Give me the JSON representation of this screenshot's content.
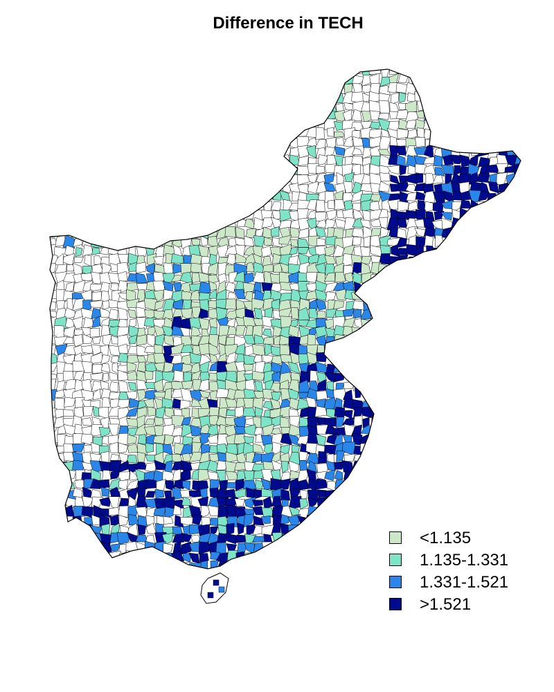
{
  "title": "Difference in TECH",
  "colors": {
    "no_data": "#ffffff",
    "class1": "#cce8c9",
    "class2": "#7fe3c8",
    "class3": "#2b86ea",
    "class4": "#000a8c",
    "border": "#000000"
  },
  "legend": [
    {
      "label": "<1.135",
      "color": "#cce8c9"
    },
    {
      "label": "1.135-1.331",
      "color": "#7fe3c8"
    },
    {
      "label": "1.331-1.521",
      "color": "#2b86ea"
    },
    {
      "label": ">1.521",
      "color": "#000a8c"
    }
  ]
}
